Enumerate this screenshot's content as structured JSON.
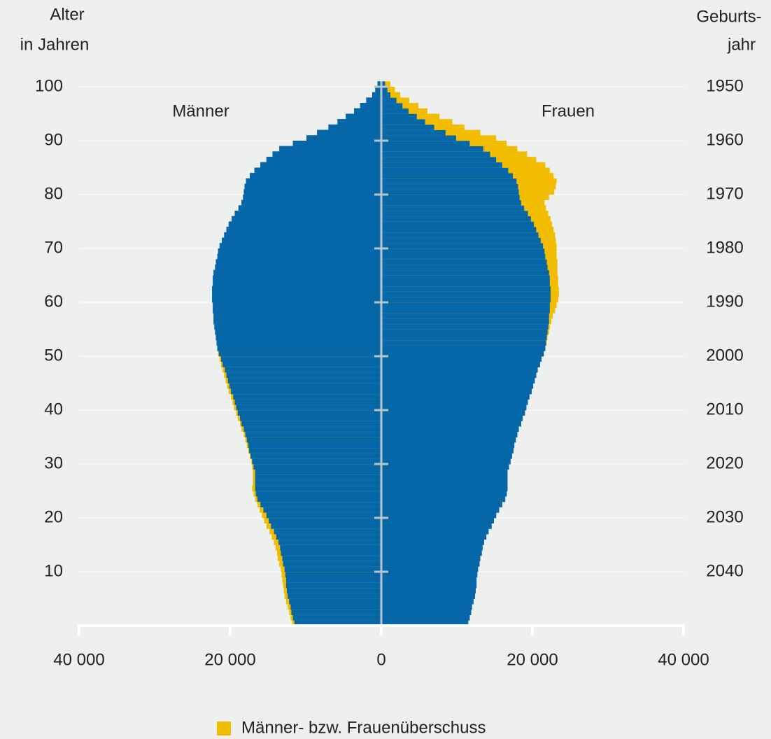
{
  "chart_data": {
    "type": "pyramid",
    "y_label": [
      "Alter",
      "in Jahren"
    ],
    "y2_label": [
      "Geburts-",
      "jahr"
    ],
    "ages": [
      0,
      1,
      2,
      3,
      4,
      5,
      6,
      7,
      8,
      9,
      10,
      11,
      12,
      13,
      14,
      15,
      16,
      17,
      18,
      19,
      20,
      21,
      22,
      23,
      24,
      25,
      26,
      27,
      28,
      29,
      30,
      31,
      32,
      33,
      34,
      35,
      36,
      37,
      38,
      39,
      40,
      41,
      42,
      43,
      44,
      45,
      46,
      47,
      48,
      49,
      50,
      51,
      52,
      53,
      54,
      55,
      56,
      57,
      58,
      59,
      60,
      61,
      62,
      63,
      64,
      65,
      66,
      67,
      68,
      69,
      70,
      71,
      72,
      73,
      74,
      75,
      76,
      77,
      78,
      79,
      80,
      81,
      82,
      83,
      84,
      85,
      86,
      87,
      88,
      89,
      90,
      91,
      92,
      93,
      94,
      95,
      96,
      97,
      98,
      99,
      100
    ],
    "series": [
      {
        "name": "Männer",
        "side": "left",
        "color": "#0667a8",
        "values": [
          11800,
          12000,
          12200,
          12400,
          12600,
          12800,
          12900,
          13000,
          13100,
          13200,
          13300,
          13500,
          13700,
          13800,
          14000,
          14200,
          14500,
          14800,
          15200,
          15500,
          15800,
          16100,
          16400,
          16700,
          16900,
          17100,
          17000,
          17000,
          17000,
          17100,
          17200,
          17400,
          17600,
          17800,
          18000,
          18200,
          18500,
          18700,
          19000,
          19200,
          19500,
          19700,
          19900,
          20200,
          20400,
          20600,
          20800,
          21000,
          21200,
          21400,
          21600,
          21700,
          21800,
          21900,
          22000,
          22100,
          22200,
          22200,
          22300,
          22300,
          22400,
          22400,
          22400,
          22300,
          22300,
          22200,
          22000,
          21900,
          21700,
          21600,
          21400,
          21100,
          20800,
          20500,
          20200,
          19800,
          19400,
          18900,
          18500,
          18300,
          18200,
          18100,
          17900,
          17400,
          16800,
          16000,
          15200,
          14400,
          13500,
          11700,
          9900,
          8500,
          7000,
          5800,
          4700,
          3600,
          2800,
          2000,
          1200,
          800,
          500
        ]
      },
      {
        "name": "Frauen",
        "side": "right",
        "color": "#0667a8",
        "values": [
          11500,
          11700,
          11900,
          12000,
          12200,
          12400,
          12500,
          12600,
          12600,
          12700,
          12800,
          13000,
          13100,
          13300,
          13400,
          13600,
          13900,
          14200,
          14600,
          14900,
          15200,
          15600,
          16000,
          16400,
          16600,
          16700,
          16700,
          16700,
          16700,
          16900,
          17100,
          17300,
          17500,
          17600,
          17800,
          18000,
          18200,
          18500,
          18700,
          19000,
          19200,
          19400,
          19600,
          19900,
          20100,
          20300,
          20500,
          20700,
          21000,
          21200,
          21500,
          21700,
          21900,
          22000,
          22200,
          22300,
          22500,
          22700,
          23000,
          23200,
          23400,
          23500,
          23500,
          23400,
          23400,
          23300,
          23300,
          23300,
          23200,
          23200,
          23200,
          23100,
          23000,
          22800,
          22600,
          22400,
          22100,
          21800,
          21600,
          22200,
          22900,
          23100,
          23200,
          22800,
          22300,
          21700,
          20500,
          19300,
          18000,
          16600,
          15200,
          13100,
          11000,
          9400,
          7700,
          6100,
          4900,
          3700,
          2500,
          1800,
          1200
        ]
      }
    ],
    "legend": {
      "label": "Männer- bzw. Frauenüberschuss",
      "color": "#f2bd00"
    },
    "xlim": [
      -40000,
      40000
    ],
    "xticks": [
      {
        "value": -40000,
        "label": "40 000"
      },
      {
        "value": -20000,
        "label": "20 000"
      },
      0,
      {
        "value": 20000,
        "label": "20 000"
      },
      {
        "value": 40000,
        "label": "40 000"
      }
    ],
    "ylim": [
      0,
      100
    ],
    "yticks": [
      10,
      20,
      30,
      40,
      50,
      60,
      70,
      80,
      90,
      100
    ],
    "y2lim": [
      2050,
      1950
    ],
    "y2ticks": [
      1950,
      1960,
      1970,
      1980,
      1990,
      2000,
      2010,
      2020,
      2030,
      2040
    ],
    "grid": true
  }
}
